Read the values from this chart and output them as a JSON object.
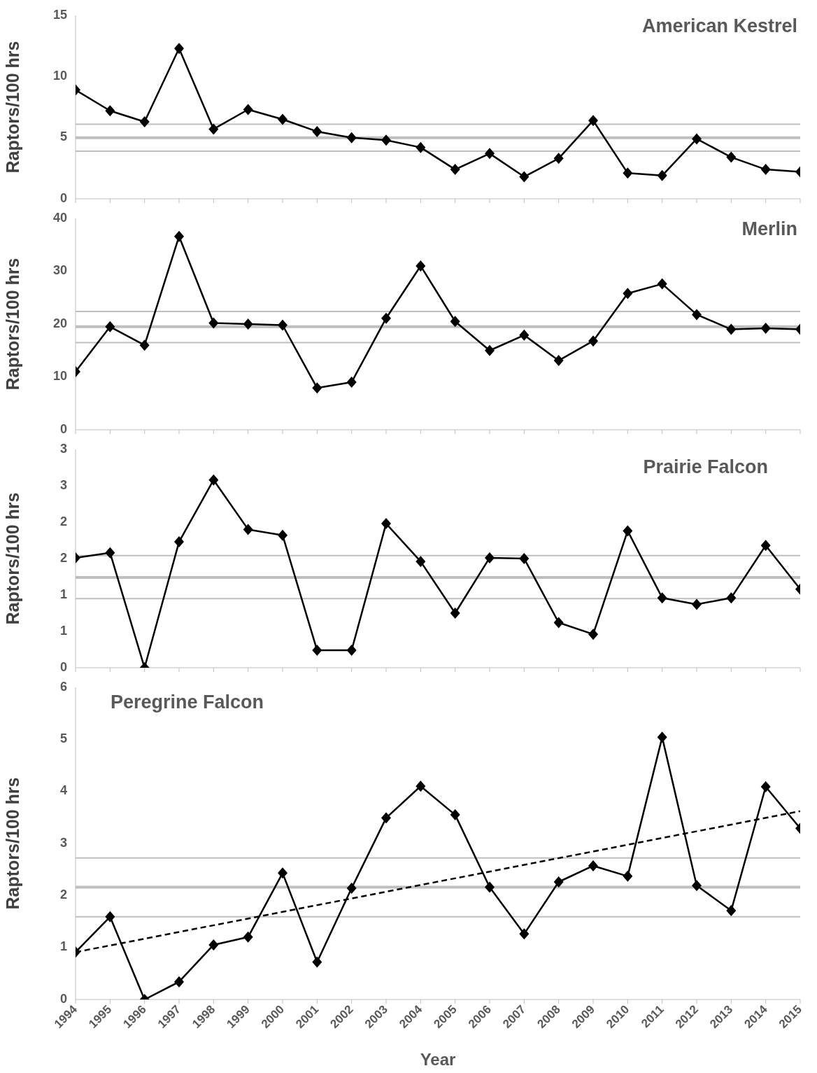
{
  "chart_data": [
    {
      "type": "line",
      "title": "American Kestrel",
      "ylabel": "Raptors/100 hrs",
      "x": [
        1994,
        1995,
        1996,
        1997,
        1998,
        1999,
        2000,
        2001,
        2002,
        2003,
        2004,
        2005,
        2006,
        2007,
        2008,
        2009,
        2010,
        2011,
        2012,
        2013,
        2014,
        2015
      ],
      "xlim": [
        1994,
        2015
      ],
      "xticks": [
        1994,
        1995,
        1996,
        1997,
        1998,
        1999,
        2000,
        2001,
        2002,
        2003,
        2004,
        2005,
        2006,
        2007,
        2008,
        2009,
        2010,
        2011,
        2012,
        2013,
        2014,
        2015
      ],
      "ylim": [
        0,
        15
      ],
      "yticks": [
        0,
        5,
        10,
        15
      ],
      "tick_labels": "y",
      "marker": "diamond",
      "line_style": "solid",
      "series": [
        {
          "color": "#000000",
          "values": [
            8.9,
            7.2,
            6.3,
            12.3,
            5.7,
            7.3,
            6.5,
            5.5,
            5.0,
            4.8,
            4.2,
            2.4,
            3.7,
            1.8,
            3.3,
            6.4,
            2.1,
            1.9,
            4.9,
            3.4,
            2.4,
            2.2
          ]
        }
      ],
      "ref_lines": [
        {
          "axis": "y",
          "value": 6.1,
          "color": "#bfbfbf"
        },
        {
          "axis": "y",
          "value": 5.0,
          "color": "#bfbfbf"
        },
        {
          "axis": "y",
          "value": 3.9,
          "color": "#bfbfbf"
        }
      ]
    },
    {
      "type": "line",
      "title": "Merlin",
      "ylabel": "Raptors/100 hrs",
      "x": [
        1994,
        1995,
        1996,
        1997,
        1998,
        1999,
        2000,
        2001,
        2002,
        2003,
        2004,
        2005,
        2006,
        2007,
        2008,
        2009,
        2010,
        2011,
        2012,
        2013,
        2014,
        2015
      ],
      "xlim": [
        1994,
        2015
      ],
      "xticks": [
        1994,
        1995,
        1996,
        1997,
        1998,
        1999,
        2000,
        2001,
        2002,
        2003,
        2004,
        2005,
        2006,
        2007,
        2008,
        2009,
        2010,
        2011,
        2012,
        2013,
        2014,
        2015
      ],
      "ylim": [
        0,
        40
      ],
      "yticks": [
        0,
        10,
        20,
        30,
        40
      ],
      "tick_labels": "y",
      "marker": "diamond",
      "line_style": "solid",
      "series": [
        {
          "color": "#000000",
          "values": [
            11.0,
            19.5,
            16.0,
            36.6,
            20.2,
            20.0,
            19.8,
            7.9,
            9.0,
            21.1,
            31.0,
            20.5,
            15.0,
            17.9,
            13.1,
            16.8,
            25.8,
            27.6,
            21.8,
            19.0,
            19.2,
            19.0
          ]
        }
      ],
      "ref_lines": [
        {
          "axis": "y",
          "value": 22.4,
          "color": "#bfbfbf"
        },
        {
          "axis": "y",
          "value": 19.5,
          "color": "#bfbfbf"
        },
        {
          "axis": "y",
          "value": 16.5,
          "color": "#bfbfbf"
        }
      ]
    },
    {
      "type": "line",
      "title": "Prairie Falcon",
      "ylabel": "Raptors/100 hrs",
      "x": [
        1994,
        1995,
        1996,
        1997,
        1998,
        1999,
        2000,
        2001,
        2002,
        2003,
        2004,
        2005,
        2006,
        2007,
        2008,
        2009,
        2010,
        2011,
        2012,
        2013,
        2014,
        2015
      ],
      "xlim": [
        1994,
        2015
      ],
      "xticks": [
        1994,
        1995,
        1996,
        1997,
        1998,
        1999,
        2000,
        2001,
        2002,
        2003,
        2004,
        2005,
        2006,
        2007,
        2008,
        2009,
        2010,
        2011,
        2012,
        2013,
        2014,
        2015
      ],
      "ylim": [
        0,
        3
      ],
      "yticks": [
        0,
        {
          "value": 0.5,
          "label": "1"
        },
        1,
        {
          "value": 1.5,
          "label": "2"
        },
        2,
        {
          "value": 2.5,
          "label": "3"
        },
        3
      ],
      "tick_labels": "y",
      "marker": "diamond",
      "line_style": "solid",
      "series": [
        {
          "color": "#000000",
          "values": [
            1.51,
            1.58,
            0,
            1.73,
            2.58,
            1.9,
            1.82,
            0.24,
            0.24,
            1.98,
            1.46,
            0.75,
            1.51,
            1.5,
            0.62,
            0.46,
            1.88,
            0.96,
            0.87,
            0.96,
            1.68,
            1.08
          ]
        }
      ],
      "ref_lines": [
        {
          "axis": "y",
          "value": 1.54,
          "color": "#bfbfbf"
        },
        {
          "axis": "y",
          "value": 1.24,
          "color": "#bfbfbf"
        },
        {
          "axis": "y",
          "value": 0.95,
          "color": "#bfbfbf"
        }
      ]
    },
    {
      "type": "line",
      "title": "Peregrine Falcon",
      "ylabel": "Raptors/100 hrs",
      "xlabel": "Year",
      "x": [
        1994,
        1995,
        1996,
        1997,
        1998,
        1999,
        2000,
        2001,
        2002,
        2003,
        2004,
        2005,
        2006,
        2007,
        2008,
        2009,
        2010,
        2011,
        2012,
        2013,
        2014,
        2015
      ],
      "xlim": [
        1994,
        2015
      ],
      "xticks": [
        1994,
        1995,
        1996,
        1997,
        1998,
        1999,
        2000,
        2001,
        2002,
        2003,
        2004,
        2005,
        2006,
        2007,
        2008,
        2009,
        2010,
        2011,
        2012,
        2013,
        2014,
        2015
      ],
      "ylim": [
        0,
        6
      ],
      "yticks": [
        0,
        1,
        2,
        3,
        4,
        5,
        6
      ],
      "marker": "diamond",
      "line_style": "solid",
      "series": [
        {
          "color": "#000000",
          "values": [
            0.91,
            1.59,
            0,
            0.34,
            1.05,
            1.2,
            2.43,
            0.72,
            2.14,
            3.49,
            4.1,
            3.55,
            2.16,
            1.26,
            2.26,
            2.57,
            2.37,
            5.04,
            2.19,
            1.71,
            4.09,
            3.29
          ]
        },
        {
          "type": "line",
          "x": [
            1994,
            2015
          ],
          "color": "#000000",
          "marker": "none",
          "line_style": "dashed",
          "values": [
            0.91,
            3.62
          ]
        }
      ],
      "ref_lines": [
        {
          "axis": "y",
          "value": 2.72,
          "color": "#bfbfbf"
        },
        {
          "axis": "y",
          "value": 2.16,
          "color": "#bfbfbf"
        },
        {
          "axis": "y",
          "value": 1.59,
          "color": "#bfbfbf"
        }
      ]
    }
  ]
}
